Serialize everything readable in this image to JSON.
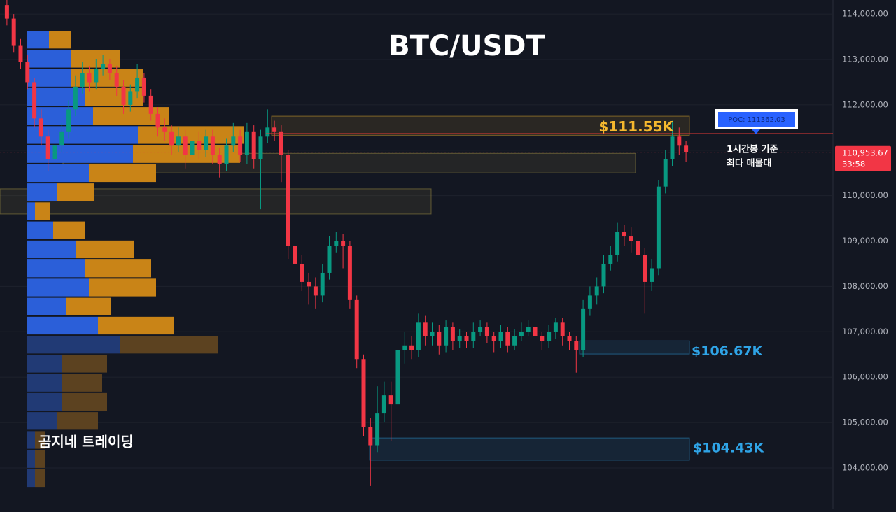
{
  "chart_data": {
    "type": "candlestick",
    "title": "BTC/USDT",
    "watermark": "곰지네 트레이딩",
    "ylim": [
      103090,
      114310
    ],
    "yticks": [
      {
        "value": 104000,
        "label": "104,000.00"
      },
      {
        "value": 105000,
        "label": "105,000.00"
      },
      {
        "value": 106000,
        "label": "106,000.00"
      },
      {
        "value": 107000,
        "label": "107,000.00"
      },
      {
        "value": 108000,
        "label": "108,000.00"
      },
      {
        "value": 109000,
        "label": "109,000.00"
      },
      {
        "value": 110000,
        "label": "110,000.00"
      },
      {
        "value": 111000,
        "label": "111,000.00"
      },
      {
        "value": 112000,
        "label": "112,000.00"
      },
      {
        "value": 113000,
        "label": "113,000.00"
      },
      {
        "value": 114000,
        "label": "114,000.00"
      }
    ],
    "grid": true,
    "up_color": "#089981",
    "down_color": "#f23645",
    "open": [
      114200,
      113900,
      113300,
      112950,
      112500,
      111700,
      111300,
      110800,
      111100,
      111400,
      111900,
      112400,
      112700,
      112500,
      112800,
      112900,
      112700,
      112400,
      112000,
      112300,
      112600,
      112200,
      111800,
      111500,
      111400,
      111100,
      111300,
      110900,
      111200,
      111000,
      111300,
      110900,
      110700,
      111100,
      111300,
      110900,
      111400,
      110800,
      111300,
      111500,
      111400,
      110900,
      108900,
      108500,
      108100,
      108000,
      107800,
      108300,
      108900,
      109000,
      108900,
      107700,
      106400,
      104900,
      104500,
      105200,
      105600,
      105400,
      106600,
      106700,
      106600,
      107200,
      106900,
      107000,
      106700,
      107100,
      106800,
      106900,
      106800,
      107000,
      107100,
      106900,
      106800,
      107000,
      106700,
      106900,
      107000,
      107100,
      106900,
      106800,
      107000,
      107200,
      106900,
      106800,
      106600,
      107500,
      107800,
      108000,
      108500,
      108700,
      109200,
      109100,
      109000,
      108700,
      108100,
      108400,
      110200,
      110800,
      111300,
      111100
    ],
    "high": [
      114350,
      114000,
      113450,
      113100,
      112600,
      111900,
      111450,
      111250,
      111600,
      112100,
      112650,
      112950,
      112850,
      113000,
      113100,
      113000,
      112850,
      112550,
      112450,
      112900,
      112700,
      112350,
      111950,
      111700,
      111550,
      111500,
      111450,
      111350,
      111400,
      111450,
      111450,
      111050,
      111250,
      111600,
      111450,
      111600,
      111550,
      111450,
      111900,
      111650,
      111550,
      111000,
      109100,
      108700,
      108300,
      108200,
      108500,
      109100,
      109200,
      109150,
      109000,
      107800,
      106500,
      105100,
      105800,
      105900,
      105900,
      106800,
      107000,
      106900,
      107400,
      107350,
      107200,
      107150,
      107250,
      107200,
      107050,
      107000,
      107200,
      107250,
      107200,
      107000,
      107150,
      107100,
      107050,
      107200,
      107250,
      107200,
      107000,
      107150,
      107300,
      107300,
      107000,
      106900,
      107700,
      108000,
      108200,
      108700,
      108900,
      109400,
      109350,
      109300,
      109200,
      108850,
      108600,
      110350,
      111000,
      111650,
      111500,
      111200
    ],
    "low": [
      113750,
      113150,
      112800,
      112350,
      111500,
      111100,
      110550,
      110600,
      110950,
      111250,
      111750,
      112250,
      112300,
      112350,
      112650,
      112550,
      112200,
      111800,
      111850,
      112150,
      112050,
      111650,
      111300,
      111200,
      110900,
      110950,
      110600,
      110750,
      110800,
      110850,
      110700,
      110400,
      110550,
      110950,
      110750,
      110700,
      110600,
      109700,
      111150,
      111200,
      110300,
      108600,
      107700,
      107900,
      107600,
      107500,
      107650,
      108150,
      108750,
      108400,
      107500,
      106200,
      104700,
      103600,
      104350,
      105000,
      104600,
      105200,
      106300,
      106400,
      106450,
      106700,
      106700,
      106500,
      106550,
      106600,
      106650,
      106650,
      106650,
      106900,
      106750,
      106550,
      106650,
      106550,
      106600,
      106800,
      106900,
      106700,
      106600,
      106650,
      106850,
      106700,
      106600,
      106100,
      106450,
      107350,
      107600,
      107850,
      108350,
      108550,
      108900,
      108750,
      108450,
      107400,
      107900,
      108250,
      110050,
      110650,
      110900,
      110750
    ],
    "close": [
      113900,
      113300,
      112950,
      112500,
      111700,
      111300,
      110800,
      111100,
      111400,
      111900,
      112400,
      112700,
      112500,
      112800,
      112900,
      112700,
      112400,
      112000,
      112300,
      112600,
      112200,
      111800,
      111500,
      111400,
      111100,
      111300,
      110900,
      111200,
      111000,
      111300,
      110900,
      110700,
      111100,
      111300,
      110900,
      111400,
      110800,
      111300,
      111500,
      111400,
      110900,
      108900,
      108500,
      108100,
      108000,
      107800,
      108300,
      108900,
      109000,
      108900,
      107700,
      106400,
      104900,
      104500,
      105200,
      105600,
      105400,
      106600,
      106700,
      106600,
      107200,
      106900,
      107000,
      106700,
      107100,
      106800,
      106900,
      106800,
      107000,
      107100,
      106900,
      106800,
      107000,
      106700,
      106900,
      107000,
      107100,
      106900,
      106800,
      107000,
      107200,
      106900,
      106800,
      106600,
      107500,
      107800,
      108000,
      108500,
      108700,
      109200,
      109100,
      109000,
      108700,
      108100,
      108400,
      110200,
      110800,
      111300,
      111100,
      110953.67
    ],
    "last_price": {
      "value": 110953.67,
      "label": "110,953.67"
    },
    "countdown": "33:58",
    "poc": {
      "value": 111362.03,
      "label": "POC: 111362.03"
    },
    "annotations": [
      "1시간봉 기준",
      "최다 매물대"
    ],
    "zones": [
      {
        "range": [
          111330,
          111750
        ],
        "label": "$111.55K",
        "color": "#f5b82e"
      },
      {
        "range": [
          110500,
          110930
        ],
        "color": "#b8a34a"
      },
      {
        "range": [
          109595,
          110150
        ],
        "color": "#b8a34a"
      },
      {
        "range": [
          106510,
          106800
        ],
        "label": "$106.67K",
        "color": "#2fa4e7"
      },
      {
        "range": [
          104170,
          104660
        ],
        "label": "$104.43K",
        "color": "#2fa4e7"
      }
    ],
    "volume_profile": {
      "bins": [
        113646,
        113226,
        112806,
        112386,
        111966,
        111546,
        111126,
        110706,
        110286,
        109866,
        109446,
        109026,
        108606,
        108186,
        107766,
        107346,
        106926,
        106506,
        106086,
        105666,
        105246,
        104826,
        104406,
        103986,
        103566
      ],
      "buy": [
        32,
        63,
        63,
        83,
        95,
        159,
        152,
        89,
        44,
        12,
        38,
        70,
        83,
        89,
        57,
        102,
        134,
        51,
        51,
        51,
        44,
        12,
        12,
        12
      ],
      "sell": [
        32,
        71,
        103,
        83,
        108,
        151,
        153,
        96,
        52,
        21,
        45,
        83,
        95,
        96,
        64,
        108,
        140,
        64,
        57,
        64,
        58,
        15,
        15,
        15
      ],
      "in_value_area": [
        true,
        true,
        true,
        true,
        true,
        true,
        true,
        true,
        true,
        true,
        true,
        true,
        true,
        true,
        true,
        true,
        false,
        false,
        false,
        false,
        false,
        false,
        false,
        false
      ],
      "buy_color": "#2b5fd9",
      "sell_color": "#c98417",
      "buy_color_outside": "#213a75",
      "sell_color_outside": "#5c4220"
    }
  }
}
